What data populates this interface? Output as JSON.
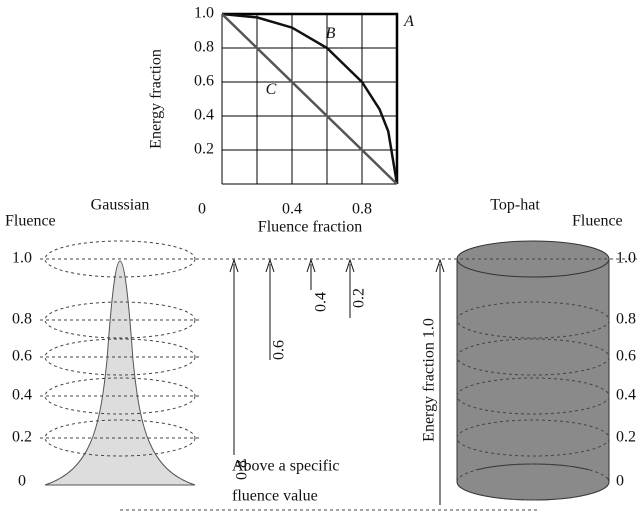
{
  "chart_data": {
    "type": "line",
    "x_label": "Fluence fraction",
    "y_label": "Energy fraction",
    "xlim": [
      0,
      1
    ],
    "ylim": [
      0,
      1
    ],
    "xticks": [
      0,
      0.4,
      0.8
    ],
    "yticks": [
      0.2,
      0.4,
      0.6,
      0.8,
      {
        "value": 1,
        "label": "1.0"
      }
    ],
    "xgrid": [
      0,
      0.2,
      0.4,
      0.6,
      0.8,
      1
    ],
    "ygrid": [
      0,
      0.2,
      0.4,
      0.6,
      0.8,
      1
    ],
    "series": [
      {
        "name": "A",
        "color": "#000000",
        "x": [
          0,
          1,
          1
        ],
        "values": [
          1,
          1,
          0
        ]
      },
      {
        "name": "B",
        "color": "#111111",
        "x": [
          0,
          0.2,
          0.4,
          0.6,
          0.8,
          0.9,
          0.95,
          1
        ],
        "values": [
          1,
          0.98,
          0.92,
          0.8,
          0.6,
          0.44,
          0.31,
          0
        ]
      },
      {
        "name": "C",
        "color": "#555555",
        "x": [
          0,
          1
        ],
        "values": [
          1,
          0
        ]
      }
    ]
  },
  "diagram": {
    "left_title": "Gaussian",
    "right_title": "Top-hat",
    "left_axis": "Fluence",
    "right_axis": "Fluence",
    "levels_left": [
      "1.0",
      "0.8",
      "0.6",
      "0.4",
      "0.2",
      "0"
    ],
    "levels_right": [
      "1.0",
      "0.8",
      "0.6",
      "0.4",
      "0.2",
      "0"
    ],
    "arrows": [
      "0.8",
      "0.6",
      "0.4",
      "0.2"
    ],
    "energy_arrow": "Energy fraction 1.0",
    "caption": [
      "Above a specific",
      "fluence value"
    ]
  }
}
